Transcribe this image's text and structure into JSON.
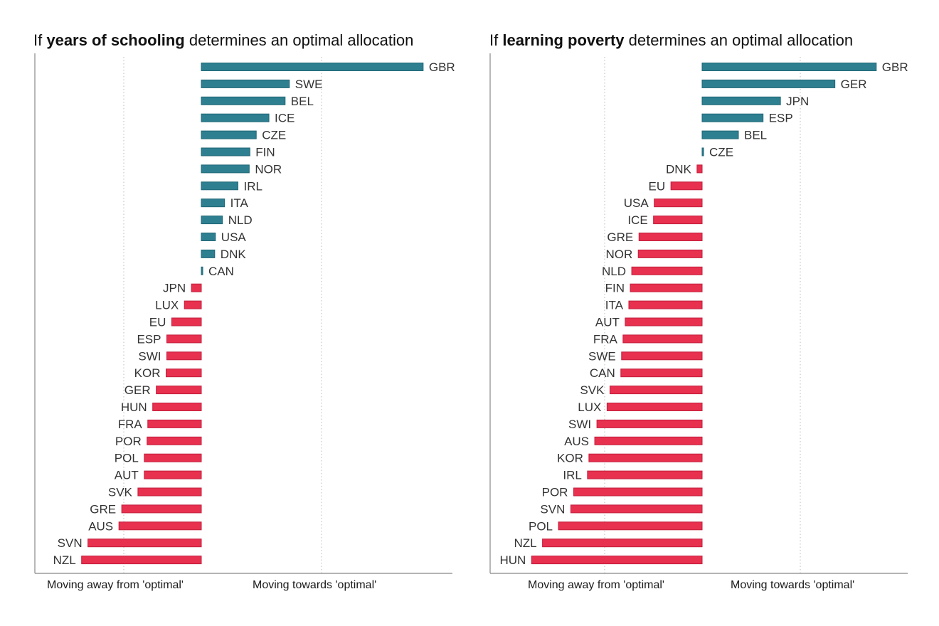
{
  "colors": {
    "positive": "#2e8091",
    "negative": "#e8304f",
    "axis": "#888888",
    "grid": "#bbbbbb"
  },
  "panels": [
    {
      "title": {
        "prefix": "If ",
        "bold": "years of schooling",
        "suffix": " determines an optimal allocation"
      },
      "xlabels": {
        "away": "Moving away from 'optimal'",
        "towards": "Moving towards 'optimal'"
      }
    },
    {
      "title": {
        "prefix": "If ",
        "bold": "learning poverty",
        "suffix": " determines an optimal allocation"
      },
      "xlabels": {
        "away": "Moving away from 'optimal'",
        "towards": "Moving towards 'optimal'"
      }
    }
  ],
  "chart_data": [
    {
      "type": "bar",
      "orientation": "horizontal",
      "title": "If years of schooling determines an optimal allocation",
      "xlabel_left": "Moving away from 'optimal'",
      "xlabel_right": "Moving towards 'optimal'",
      "grid": "vertical dotted",
      "categories": [
        "GBR",
        "SWE",
        "BEL",
        "ICE",
        "CZE",
        "FIN",
        "NOR",
        "IRL",
        "ITA",
        "NLD",
        "USA",
        "DNK",
        "CAN",
        "JPN",
        "LUX",
        "EU",
        "ESP",
        "SWI",
        "KOR",
        "GER",
        "HUN",
        "FRA",
        "POR",
        "POL",
        "AUT",
        "SVK",
        "GRE",
        "AUS",
        "SVN",
        "NZL"
      ],
      "values": [
        3.15,
        1.25,
        1.19,
        0.96,
        0.78,
        0.69,
        0.68,
        0.52,
        0.33,
        0.3,
        0.2,
        0.19,
        0.01,
        -0.14,
        -0.24,
        -0.42,
        -0.49,
        -0.49,
        -0.5,
        -0.64,
        -0.69,
        -0.76,
        -0.77,
        -0.81,
        -0.81,
        -0.9,
        -1.13,
        -1.17,
        -1.61,
        -1.7
      ]
    },
    {
      "type": "bar",
      "orientation": "horizontal",
      "title": "If learning poverty determines an optimal allocation",
      "xlabel_left": "Moving away from 'optimal'",
      "xlabel_right": "Moving towards 'optimal'",
      "grid": "vertical dotted",
      "categories": [
        "GBR",
        "GER",
        "JPN",
        "ESP",
        "BEL",
        "CZE",
        "DNK",
        "EU",
        "USA",
        "ICE",
        "GRE",
        "NOR",
        "NLD",
        "FIN",
        "ITA",
        "AUT",
        "FRA",
        "SWE",
        "CAN",
        "SVK",
        "LUX",
        "SWI",
        "AUS",
        "KOR",
        "IRL",
        "POR",
        "SVN",
        "POL",
        "NZL",
        "HUN"
      ],
      "values": [
        2.4,
        1.83,
        1.08,
        0.84,
        0.5,
        0.02,
        -0.07,
        -0.43,
        -0.66,
        -0.67,
        -0.87,
        -0.88,
        -0.97,
        -0.99,
        -1.01,
        -1.06,
        -1.09,
        -1.11,
        -1.12,
        -1.27,
        -1.31,
        -1.45,
        -1.48,
        -1.56,
        -1.58,
        -1.77,
        -1.81,
        -1.98,
        -2.2,
        -2.35
      ]
    }
  ]
}
